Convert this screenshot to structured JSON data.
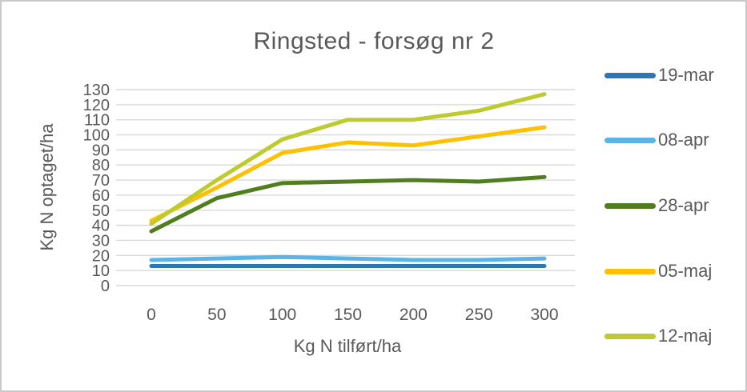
{
  "title": "Ringsted - forsøg nr 2",
  "chart_data": {
    "type": "line",
    "title": "Ringsted - forsøg nr 2",
    "xlabel": "Kg N tilført/ha",
    "ylabel": "Kg N optaget/ha",
    "x": [
      0,
      50,
      100,
      150,
      200,
      250,
      300
    ],
    "xticks": [
      "0",
      "50",
      "100",
      "150",
      "200",
      "250",
      "300"
    ],
    "yticks": [
      0,
      10,
      20,
      30,
      40,
      50,
      60,
      70,
      80,
      90,
      100,
      110,
      120,
      130
    ],
    "xlim": [
      0,
      300
    ],
    "ylim": [
      0,
      130
    ],
    "grid": true,
    "legend_position": "right",
    "series": [
      {
        "name": "19-mar",
        "color": "#2E75B6",
        "values": [
          13,
          13,
          13,
          13,
          13,
          13,
          13
        ]
      },
      {
        "name": "08-apr",
        "color": "#5BB4E5",
        "values": [
          17,
          18,
          19,
          18,
          17,
          17,
          18
        ]
      },
      {
        "name": "28-apr",
        "color": "#507E1F",
        "values": [
          36,
          58,
          68,
          69,
          70,
          69,
          72
        ]
      },
      {
        "name": "05-maj",
        "color": "#FFC000",
        "values": [
          43,
          65,
          88,
          95,
          93,
          99,
          105
        ]
      },
      {
        "name": "12-maj",
        "color": "#BDCB2F",
        "values": [
          41,
          70,
          97,
          110,
          110,
          116,
          127
        ]
      }
    ]
  },
  "colors": {
    "text": "#595959",
    "gridline": "#D9D9D9",
    "background": "#FFFFFF",
    "border": "#C9C9C9"
  }
}
